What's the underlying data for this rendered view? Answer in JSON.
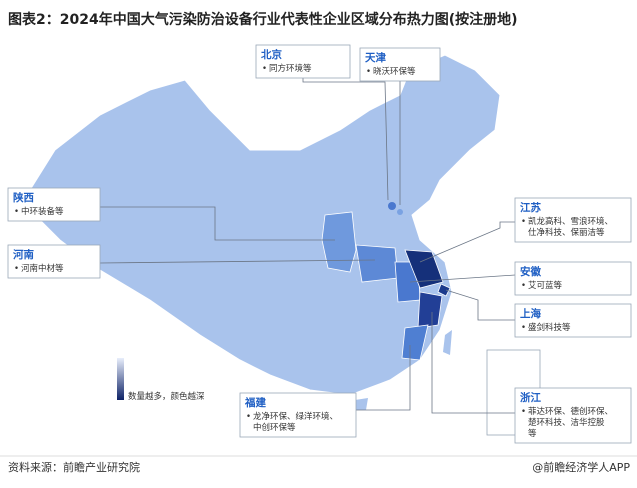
{
  "header": {
    "title": "图表2：2024年中国大气污染防治设备行业代表性企业区域分布热力图(按注册地)"
  },
  "callouts": [
    {
      "region": "北京",
      "companies": [
        "同方环境等"
      ]
    },
    {
      "region": "天津",
      "companies": [
        "晓沃环保等"
      ]
    },
    {
      "region": "陕西",
      "companies": [
        "中环装备等"
      ]
    },
    {
      "region": "河南",
      "companies": [
        "河南中材等"
      ]
    },
    {
      "region": "江苏",
      "companies": [
        "凯龙高科、雪浪环境、",
        "仕净科技、保丽洁等"
      ]
    },
    {
      "region": "安徽",
      "companies": [
        "艾可蓝等"
      ]
    },
    {
      "region": "上海",
      "companies": [
        "盛剑科技等"
      ]
    },
    {
      "region": "福建",
      "companies": [
        "龙净环保、绿洋环境、",
        "中创环保等"
      ]
    },
    {
      "region": "浙江",
      "companies": [
        "菲达环保、德创环保、",
        "楚环科技、洁华控股",
        "等"
      ]
    }
  ],
  "legend": {
    "text": "数量越多，颜色越深"
  },
  "footer": {
    "source": "资料来源：前瞻产业研究院",
    "brand": "@前瞻经济学人APP"
  }
}
